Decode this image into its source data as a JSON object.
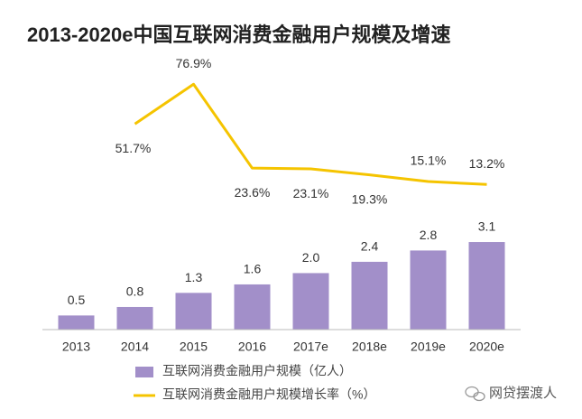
{
  "chart_data": {
    "type": "bar_line",
    "title": "2013-2020e中国互联网消费金融用户规模及增速",
    "categories": [
      "2013",
      "2014",
      "2015",
      "2016",
      "2017e",
      "2018e",
      "2019e",
      "2020e"
    ],
    "series": [
      {
        "name": "互联网消费金融用户规模（亿人）",
        "type": "bar",
        "color": "#a28fc9",
        "values": [
          0.5,
          0.8,
          1.3,
          1.6,
          2.0,
          2.4,
          2.8,
          3.1
        ],
        "value_labels": [
          "0.5",
          "0.8",
          "1.3",
          "1.6",
          "2.0",
          "2.4",
          "2.8",
          "3.1"
        ]
      },
      {
        "name": "互联网消费金融用户规模增长率（%）",
        "type": "line",
        "axis": "y2",
        "color": "#f5c400",
        "values": [
          null,
          51.7,
          76.9,
          23.6,
          23.1,
          19.3,
          15.1,
          13.2
        ],
        "value_labels": [
          null,
          "51.7%",
          "76.9%",
          "23.6%",
          "23.1%",
          "19.3%",
          "15.1%",
          "13.2%"
        ]
      }
    ],
    "ylim": [
      0,
      9.75
    ],
    "y2lim": [
      -79,
      96
    ],
    "watermark": "网贷摆渡人"
  }
}
